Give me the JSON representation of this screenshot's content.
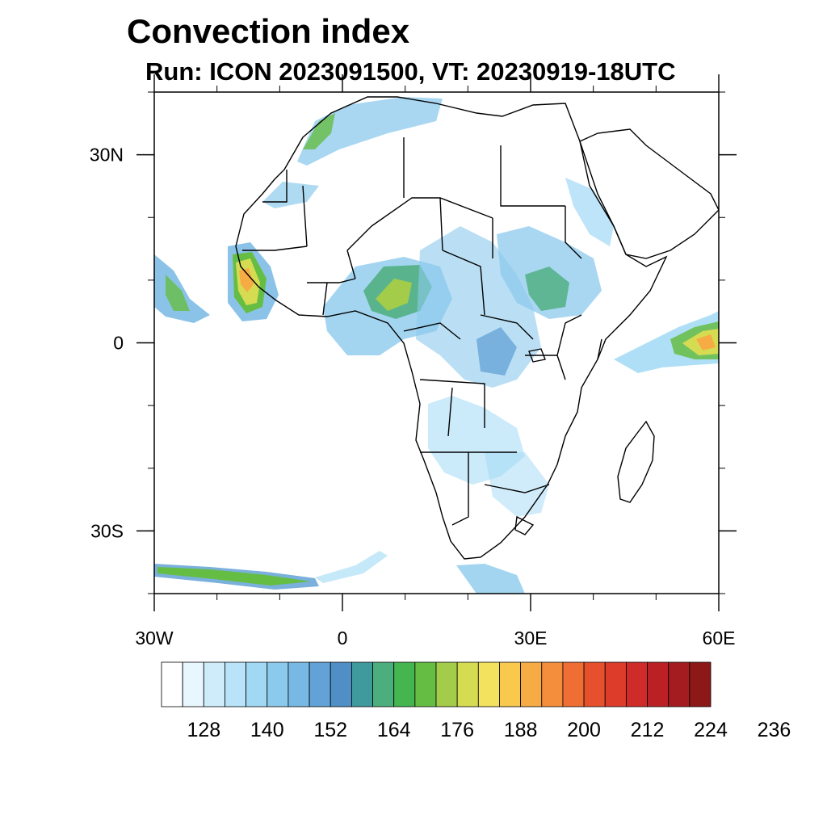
{
  "title": "Convection index",
  "subtitle": "Run: ICON 2023091500,  VT: 20230919-18UTC",
  "map": {
    "lon_range": [
      -30,
      60
    ],
    "lat_range": [
      -40,
      40
    ],
    "x_ticks": [
      {
        "lon": -30,
        "label": "30W"
      },
      {
        "lon": 0,
        "label": "0"
      },
      {
        "lon": 30,
        "label": "30E"
      },
      {
        "lon": 60,
        "label": "60E"
      }
    ],
    "y_ticks": [
      {
        "lat": 30,
        "label": "30N"
      },
      {
        "lat": 0,
        "label": "0"
      },
      {
        "lat": -30,
        "label": "30S"
      }
    ],
    "minor_lon_step": 10,
    "minor_lat_step": 10
  },
  "colorbar": {
    "colors": [
      "#ffffff",
      "#e8f6fd",
      "#cfecfa",
      "#b8e3f8",
      "#a1d9f5",
      "#8ccaed",
      "#77b8e4",
      "#62a2d6",
      "#4f8fc6",
      "#3f9a9e",
      "#4cae7c",
      "#44b54f",
      "#66bd44",
      "#a2cc4a",
      "#d6dc52",
      "#f3e25e",
      "#f9c94e",
      "#f7ab44",
      "#f48e3c",
      "#ef6e33",
      "#e6502c",
      "#dd3c2a",
      "#ce2b29",
      "#bb2025",
      "#a51c20",
      "#8c1818"
    ],
    "labels": [
      "128",
      "140",
      "152",
      "164",
      "176",
      "188",
      "200",
      "212",
      "224",
      "236"
    ],
    "label_start_box": 2,
    "label_box_step": 3
  },
  "regions": {
    "coastline_name": "africa-coastline",
    "madagascar_name": "madagascar"
  }
}
